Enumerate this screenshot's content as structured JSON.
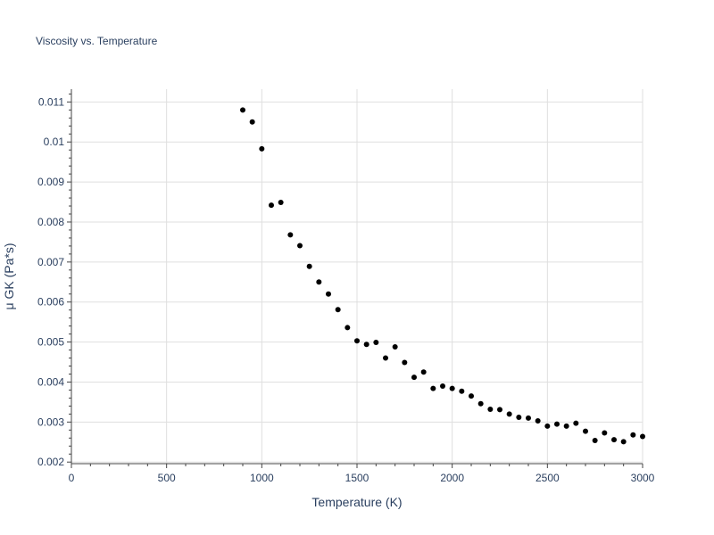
{
  "chart_data": {
    "type": "scatter",
    "title": "Viscosity vs. Temperature",
    "xlabel": "Temperature (K)",
    "ylabel": "μ GK (Pa*s)",
    "xlim": [
      0,
      3000
    ],
    "ylim": [
      0.00196,
      0.01132
    ],
    "xticks": [
      0,
      500,
      1000,
      1500,
      2000,
      2500,
      3000
    ],
    "xtick_labels": [
      "0",
      "500",
      "1000",
      "1500",
      "2000",
      "2500",
      "3000"
    ],
    "yticks": [
      0.002,
      0.003,
      0.004,
      0.005,
      0.006,
      0.007,
      0.008,
      0.009,
      0.01,
      0.011
    ],
    "ytick_labels": [
      "0.002",
      "0.003",
      "0.004",
      "0.005",
      "0.006",
      "0.007",
      "0.008",
      "0.009",
      "0.01",
      "0.011"
    ],
    "grid": true,
    "marker_color": "#000000",
    "grid_color": "#dfdfdf",
    "text_color": "#2a3f5f",
    "series": [
      {
        "name": "μ GK",
        "points": [
          [
            900,
            0.0108
          ],
          [
            950,
            0.0105
          ],
          [
            1000,
            0.00983
          ],
          [
            1050,
            0.00842
          ],
          [
            1100,
            0.00849
          ],
          [
            1150,
            0.00768
          ],
          [
            1200,
            0.00741
          ],
          [
            1250,
            0.00689
          ],
          [
            1300,
            0.0065
          ],
          [
            1350,
            0.0062
          ],
          [
            1400,
            0.00581
          ],
          [
            1450,
            0.00536
          ],
          [
            1500,
            0.00503
          ],
          [
            1550,
            0.00494
          ],
          [
            1600,
            0.00499
          ],
          [
            1650,
            0.0046
          ],
          [
            1700,
            0.00488
          ],
          [
            1750,
            0.00449
          ],
          [
            1800,
            0.00412
          ],
          [
            1850,
            0.00425
          ],
          [
            1900,
            0.00384
          ],
          [
            1950,
            0.0039
          ],
          [
            2000,
            0.00384
          ],
          [
            2050,
            0.00377
          ],
          [
            2100,
            0.00365
          ],
          [
            2150,
            0.00346
          ],
          [
            2200,
            0.00332
          ],
          [
            2250,
            0.00331
          ],
          [
            2300,
            0.0032
          ],
          [
            2350,
            0.00312
          ],
          [
            2400,
            0.0031
          ],
          [
            2450,
            0.00303
          ],
          [
            2500,
            0.0029
          ],
          [
            2550,
            0.00295
          ],
          [
            2600,
            0.0029
          ],
          [
            2650,
            0.00297
          ],
          [
            2700,
            0.00277
          ],
          [
            2750,
            0.00254
          ],
          [
            2800,
            0.00273
          ],
          [
            2850,
            0.00256
          ],
          [
            2900,
            0.00251
          ],
          [
            2950,
            0.00268
          ],
          [
            3000,
            0.00264
          ]
        ]
      }
    ]
  }
}
